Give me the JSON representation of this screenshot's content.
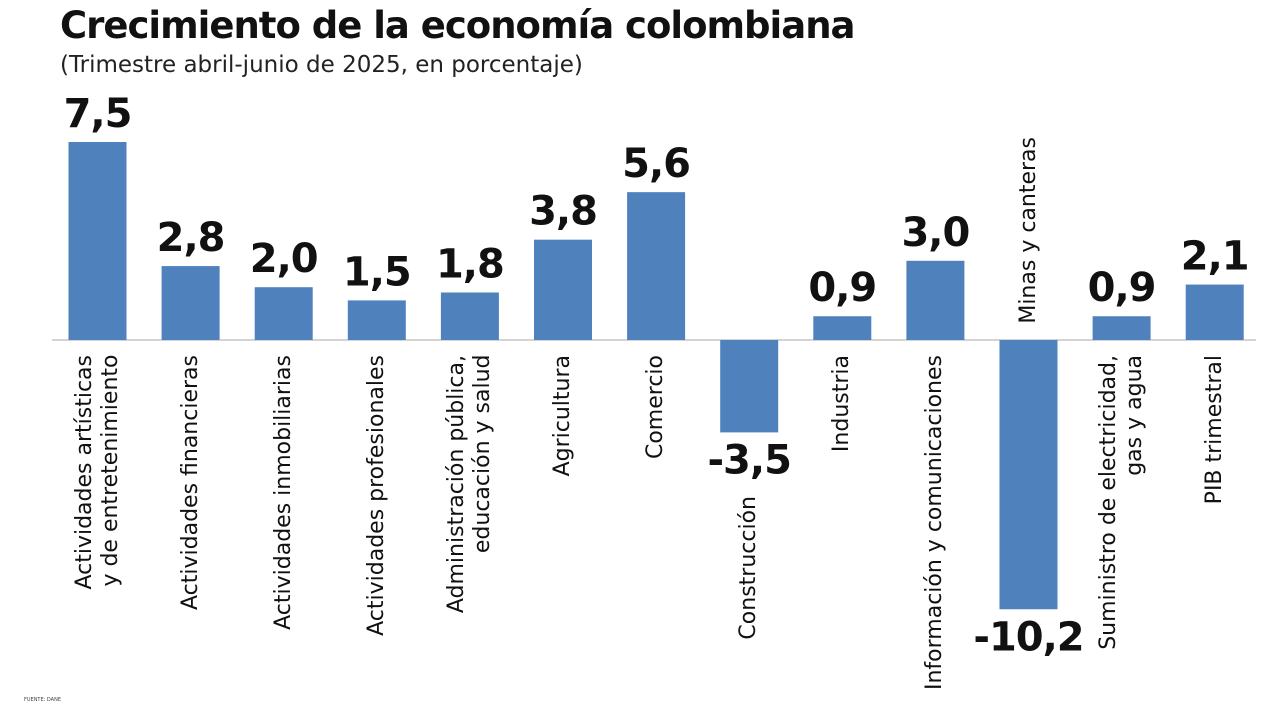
{
  "chart_data": {
    "type": "bar",
    "title": "Crecimiento de la economía colombiana",
    "subtitle": "(Trimestre abril-junio de 2025, en porcentaje)",
    "source": "FUENTE: DANE",
    "categories": [
      "Actividades artísticas\ny de entretenimiento",
      "Actividades financieras",
      "Actividades inmobiliarias",
      "Actividades profesionales",
      "Administración pública,\neducación y salud",
      "Agricultura",
      "Comercio",
      "Construcción",
      "Industria",
      "Información y comunicaciones",
      "Minas y canteras",
      "Suministro de electricidad,\ngas y agua",
      "PIB trimestral"
    ],
    "values": [
      7.5,
      2.8,
      2.0,
      1.5,
      1.8,
      3.8,
      5.6,
      -3.5,
      0.9,
      3.0,
      -10.2,
      0.9,
      2.1
    ],
    "value_labels": [
      "7,5",
      "2,8",
      "2,0",
      "1,5",
      "1,8",
      "3,8",
      "5,6",
      "-3,5",
      "0,9",
      "3,0",
      "-10,2",
      "0,9",
      "2,1"
    ],
    "color": "#4f81bd"
  }
}
